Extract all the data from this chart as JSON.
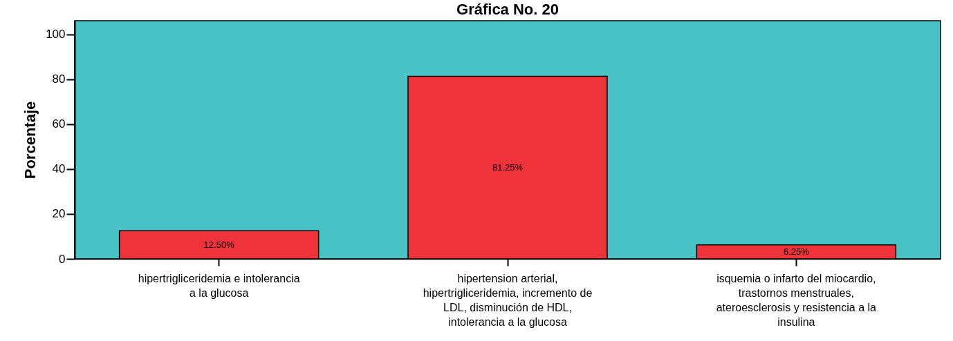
{
  "chart_data": {
    "type": "bar",
    "title": "Gráfica No. 20",
    "ylabel": "Porcentaje",
    "categories": [
      "hipertrigliceridemia e intolerancia a la glucosa",
      "hipertension arterial, hipertrigliceridemia, incremento de LDL, disminución de HDL, intolerancia a la glucosa",
      "isquemia o infarto del miocardio, trastornos menstruales, ateroesclerosis y resistencia a la insulina"
    ],
    "values": [
      12.5,
      81.25,
      6.25
    ],
    "value_labels": [
      "12.50%",
      "81.25%",
      "6.25%"
    ],
    "color": "#ef333b",
    "ylim": [
      0,
      106
    ],
    "yticks": [
      0,
      20,
      40,
      60,
      80,
      100
    ],
    "grid": false
  }
}
